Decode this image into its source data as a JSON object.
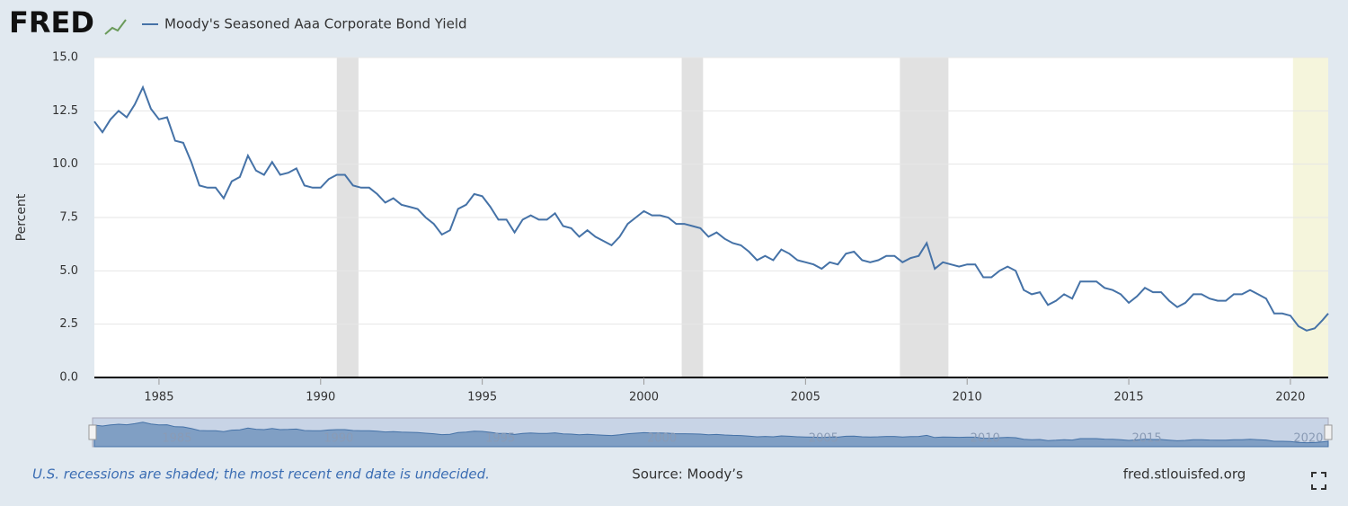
{
  "chart_data": {
    "type": "line",
    "logo": "FRED",
    "ylabel": "Percent",
    "series": [
      {
        "name": "Moody's Seasoned Aaa Corporate Bond Yield",
        "color": "#4572a7",
        "values": [
          12.0,
          11.5,
          12.1,
          12.5,
          12.2,
          12.8,
          13.6,
          12.6,
          12.1,
          12.2,
          11.1,
          11.0,
          10.1,
          9.0,
          8.9,
          8.9,
          8.4,
          9.2,
          9.4,
          10.4,
          9.7,
          9.5,
          10.1,
          9.5,
          9.6,
          9.8,
          9.0,
          8.9,
          8.9,
          9.3,
          9.5,
          9.5,
          9.0,
          8.9,
          8.9,
          8.6,
          8.2,
          8.4,
          8.1,
          8.0,
          7.9,
          7.5,
          7.2,
          6.7,
          6.9,
          7.9,
          8.1,
          8.6,
          8.5,
          8.0,
          7.4,
          7.4,
          6.8,
          7.4,
          7.6,
          7.4,
          7.4,
          7.7,
          7.1,
          7.0,
          6.6,
          6.9,
          6.6,
          6.4,
          6.2,
          6.6,
          7.2,
          7.5,
          7.8,
          7.6,
          7.6,
          7.5,
          7.2,
          7.2,
          7.1,
          7.0,
          6.6,
          6.8,
          6.5,
          6.3,
          6.2,
          5.9,
          5.5,
          5.7,
          5.5,
          6.0,
          5.8,
          5.5,
          5.4,
          5.3,
          5.1,
          5.4,
          5.3,
          5.8,
          5.9,
          5.5,
          5.4,
          5.5,
          5.7,
          5.7,
          5.4,
          5.6,
          5.7,
          6.3,
          5.1,
          5.4,
          5.3,
          5.2,
          5.3,
          5.3,
          4.7,
          4.7,
          5.0,
          5.2,
          5.0,
          4.1,
          3.9,
          4.0,
          3.4,
          3.6,
          3.9,
          3.7,
          4.5,
          4.5,
          4.5,
          4.2,
          4.1,
          3.9,
          3.5,
          3.8,
          4.2,
          4.0,
          4.0,
          3.6,
          3.3,
          3.5,
          3.9,
          3.9,
          3.7,
          3.6,
          3.6,
          3.9,
          3.9,
          4.1,
          3.9,
          3.7,
          3.0,
          3.0,
          2.9,
          2.4,
          2.2,
          2.3,
          2.7,
          3.0
        ]
      }
    ],
    "x": [
      1983,
      1983.25,
      1983.5,
      1983.75,
      1984,
      1984.25,
      1984.5,
      1984.75,
      1985,
      1985.25,
      1985.5,
      1985.75,
      1986,
      1986.25,
      1986.5,
      1986.75,
      1987,
      1987.25,
      1987.5,
      1987.75,
      1988,
      1988.25,
      1988.5,
      1988.75,
      1989,
      1989.25,
      1989.5,
      1989.75,
      1990,
      1990.25,
      1990.5,
      1990.75,
      1991,
      1991.25,
      1991.5,
      1991.75,
      1992,
      1992.25,
      1992.5,
      1992.75,
      1993,
      1993.25,
      1993.5,
      1993.75,
      1994,
      1994.25,
      1994.5,
      1994.75,
      1995,
      1995.25,
      1995.5,
      1995.75,
      1996,
      1996.25,
      1996.5,
      1996.75,
      1997,
      1997.25,
      1997.5,
      1997.75,
      1998,
      1998.25,
      1998.5,
      1998.75,
      1999,
      1999.25,
      1999.5,
      1999.75,
      2000,
      2000.25,
      2000.5,
      2000.75,
      2001,
      2001.25,
      2001.5,
      2001.75,
      2002,
      2002.25,
      2002.5,
      2002.75,
      2003,
      2003.25,
      2003.5,
      2003.75,
      2004,
      2004.25,
      2004.5,
      2004.75,
      2005,
      2005.25,
      2005.5,
      2005.75,
      2006,
      2006.25,
      2006.5,
      2006.75,
      2007,
      2007.25,
      2007.5,
      2007.75,
      2008,
      2008.25,
      2008.5,
      2008.75,
      2009,
      2009.25,
      2009.5,
      2009.75,
      2010,
      2010.25,
      2010.5,
      2010.75,
      2011,
      2011.25,
      2011.5,
      2011.75,
      2012,
      2012.25,
      2012.5,
      2012.75,
      2013,
      2013.25,
      2013.5,
      2013.75,
      2014,
      2014.25,
      2014.5,
      2014.75,
      2015,
      2015.25,
      2015.5,
      2015.75,
      2016,
      2016.25,
      2016.5,
      2016.75,
      2017,
      2017.25,
      2017.5,
      2017.75,
      2018,
      2018.25,
      2018.5,
      2018.75,
      2019,
      2019.25,
      2019.5,
      2019.75,
      2020,
      2020.25,
      2020.5,
      2020.75,
      2021,
      2021.17
    ],
    "xlim": [
      1983,
      2021.17
    ],
    "xticks": [
      1985,
      1990,
      1995,
      2000,
      2005,
      2010,
      2015,
      2020
    ],
    "ylim": [
      0,
      15
    ],
    "yticks": [
      {
        "value": 0,
        "label": "0.0"
      },
      2.5,
      {
        "value": 5,
        "label": "5.0"
      },
      7.5,
      {
        "value": 10,
        "label": "10.0"
      },
      12.5,
      {
        "value": 15,
        "label": "15.0"
      }
    ],
    "grid": true,
    "recessions": [
      {
        "start": 1990.5,
        "end": 1991.17,
        "color": "#e1e1e1"
      },
      {
        "start": 2001.17,
        "end": 2001.83,
        "color": "#e1e1e1"
      },
      {
        "start": 2007.92,
        "end": 2009.42,
        "color": "#e1e1e1"
      },
      {
        "start": 2020.08,
        "end": 2021.17,
        "color": "#f5f5dc"
      }
    ],
    "note": "U.S. recessions are shaded; the most recent end date is undecided.",
    "source": "Source: Moody’s",
    "site": "fred.stlouisfed.org"
  }
}
